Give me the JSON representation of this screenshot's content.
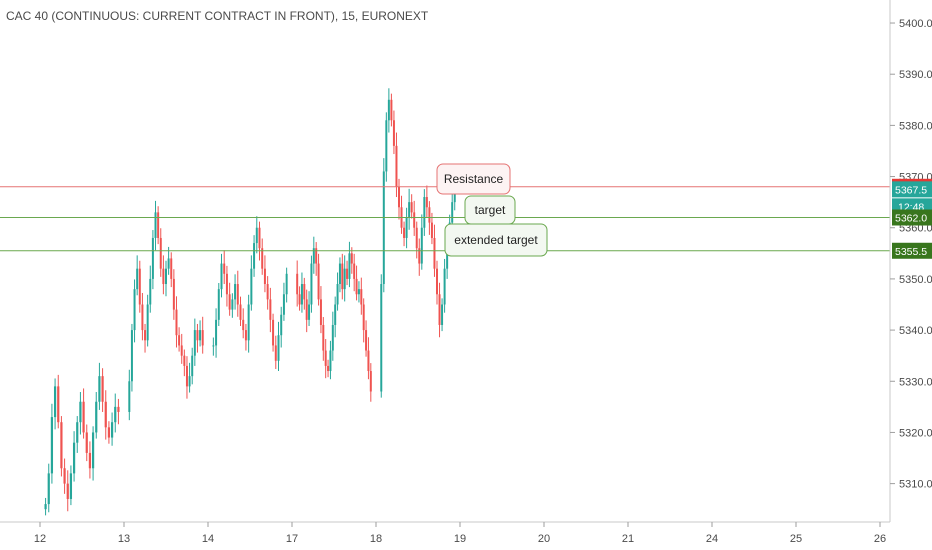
{
  "colors": {
    "up": "#26a69a",
    "down": "#ef5350",
    "resistance": "#e57373",
    "target": "#6aa84f",
    "tag_resistance": "#e53935",
    "tag_last": "#26a69a",
    "tag_target": "#38761d",
    "axis_text": "#4a4a4a"
  },
  "chart_data": {
    "type": "candlestick",
    "title": "CAC 40 (CONTINUOUS: CURRENT CONTRACT IN FRONT), 15, EURONEXT",
    "x_ticks": [
      "12",
      "13",
      "14",
      "17",
      "18",
      "19",
      "20",
      "21",
      "24",
      "25",
      "26"
    ],
    "y_ticks": [
      "5310.0",
      "5320.0",
      "5330.0",
      "5340.0",
      "5350.0",
      "5360.0",
      "5370.0",
      "5380.0",
      "5390.0",
      "5400.0"
    ],
    "ylim": [
      5302.5,
      5404.5
    ],
    "grid": false,
    "series": [
      {
        "date": "12",
        "close": [
          5306,
          5312,
          5323,
          5329,
          5322,
          5313,
          5310,
          5307,
          5312,
          5318,
          5322,
          5326,
          5320,
          5316,
          5313,
          5320,
          5326,
          5331,
          5326,
          5321,
          5319,
          5322,
          5325,
          5324
        ]
      },
      {
        "date": "13",
        "close": [
          5330,
          5340,
          5348,
          5352,
          5345,
          5340,
          5338,
          5345,
          5350,
          5358,
          5363,
          5358,
          5352,
          5349,
          5352,
          5354,
          5350,
          5344,
          5339,
          5337,
          5335,
          5333,
          5329,
          5331,
          5335,
          5340,
          5338,
          5340,
          5337
        ]
      },
      {
        "date": "14",
        "close": [
          5337,
          5342,
          5348,
          5353,
          5351,
          5347,
          5344,
          5346,
          5349,
          5345,
          5342,
          5340,
          5338,
          5345,
          5352,
          5357,
          5360,
          5356,
          5352,
          5349,
          5346,
          5342,
          5337,
          5334,
          5339,
          5343,
          5347,
          5351
        ]
      },
      {
        "date": "17",
        "close": [
          5347,
          5345,
          5349,
          5346,
          5342,
          5345,
          5353,
          5356,
          5353,
          5346,
          5341,
          5336,
          5333,
          5332,
          5336,
          5341,
          5345,
          5349,
          5353,
          5348,
          5352,
          5350,
          5355,
          5353,
          5350,
          5347,
          5348,
          5345,
          5340,
          5336,
          5332,
          5328
        ]
      },
      {
        "date": "18",
        "close": [
          5349,
          5371,
          5381,
          5385,
          5381,
          5376,
          5368,
          5364,
          5360,
          5358,
          5362,
          5365,
          5363,
          5360,
          5356,
          5353,
          5360,
          5366,
          5364,
          5361,
          5358,
          5352,
          5347,
          5341,
          5345,
          5352,
          5357,
          5361,
          5365,
          5367.5
        ]
      }
    ],
    "levels": [
      {
        "name": "Resistance",
        "value": 5368.0,
        "tag": "5368.0"
      },
      {
        "name": "target",
        "value": 5362.0,
        "tag": "5362.0"
      },
      {
        "name": "extended target",
        "value": 5355.5,
        "tag": "5355.5"
      }
    ],
    "last_price": {
      "value": 5367.5,
      "tag": "5367.5",
      "countdown": "12:48"
    },
    "annotations": [
      "Resistance",
      "target",
      "extended target"
    ]
  }
}
